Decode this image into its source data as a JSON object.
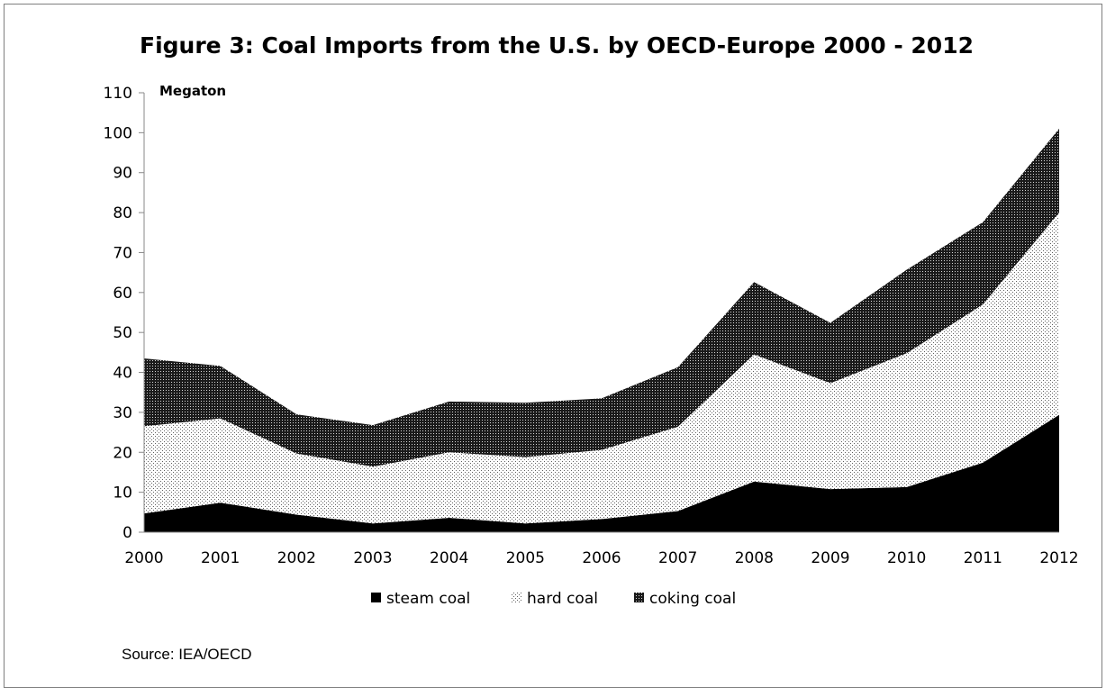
{
  "chart_data": {
    "type": "area",
    "stacked": true,
    "title": "Figure 3: Coal Imports from the U.S. by OECD-Europe 2000 - 2012",
    "unit_label": "Megaton",
    "x": [
      "2000",
      "2001",
      "2002",
      "2003",
      "2004",
      "2005",
      "2006",
      "2007",
      "2008",
      "2009",
      "2010",
      "2011",
      "2012"
    ],
    "ylim": [
      0,
      110
    ],
    "yticks": [
      "0",
      "10",
      "20",
      "30",
      "40",
      "50",
      "60",
      "70",
      "80",
      "90",
      "100",
      "110"
    ],
    "grid": false,
    "legend_position": "bottom",
    "series": [
      {
        "name": "steam coal",
        "values": [
          4.7,
          7.4,
          4.4,
          2.2,
          3.6,
          2.2,
          3.3,
          5.3,
          12.7,
          10.8,
          11.3,
          17.4,
          29.4
        ],
        "color": "#000000",
        "pattern": "solid"
      },
      {
        "name": "hard coal",
        "values": [
          21.8,
          21.1,
          15.3,
          14.2,
          16.4,
          16.6,
          17.3,
          21.1,
          31.8,
          26.5,
          33.5,
          39.6,
          50.6
        ],
        "color": "#ffffff",
        "pattern": "fine-dots"
      },
      {
        "name": "coking coal",
        "values": [
          17.0,
          13.1,
          9.8,
          10.4,
          12.7,
          13.6,
          12.9,
          14.9,
          18.1,
          15.1,
          20.9,
          20.6,
          21.0
        ],
        "color": "#3a3a3a",
        "pattern": "dense-dots"
      }
    ]
  },
  "footer": {
    "source": "Source: IEA/OECD"
  }
}
